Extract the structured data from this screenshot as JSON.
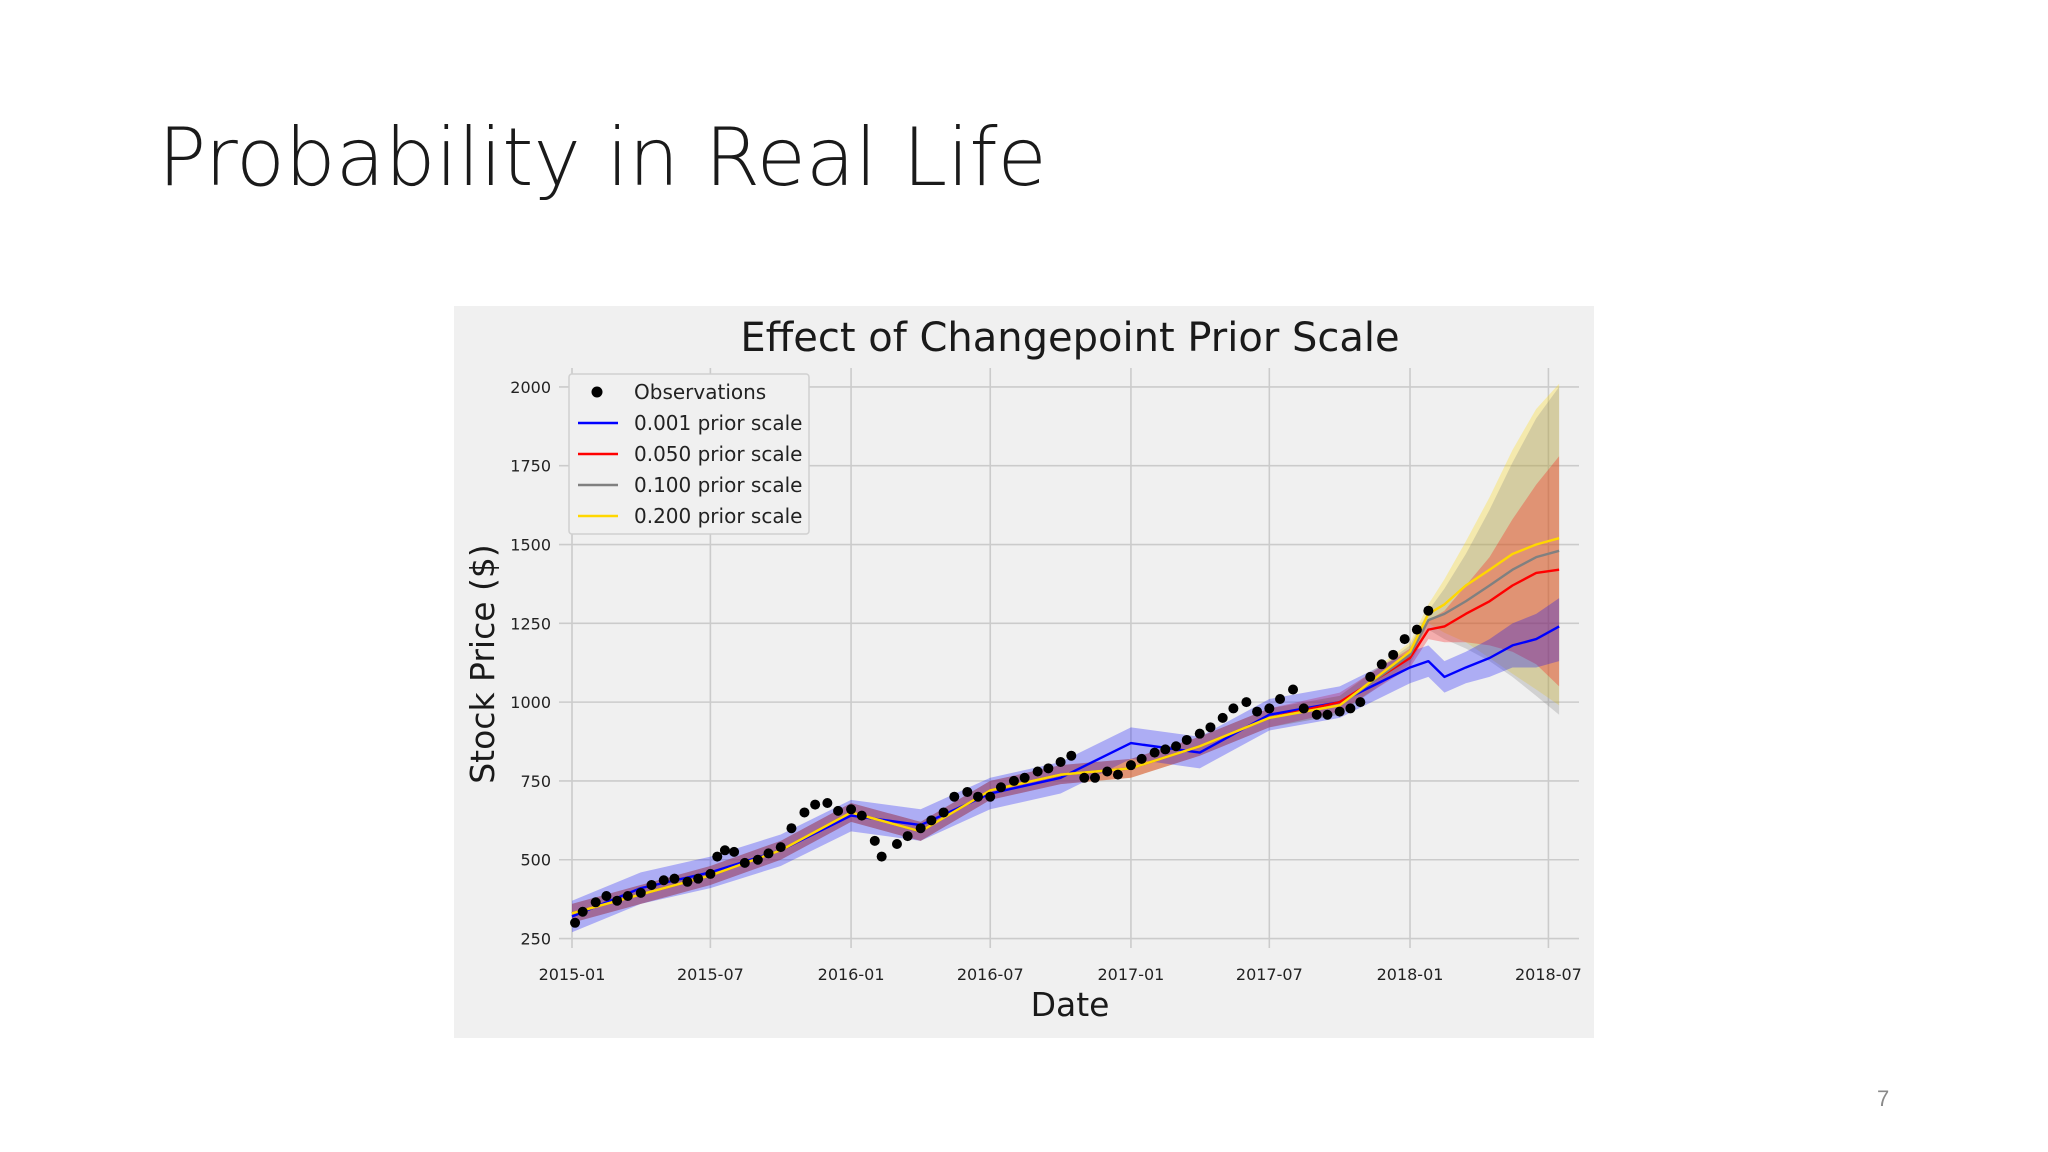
{
  "slide": {
    "title": "Probability in Real Life",
    "page_number": "7"
  },
  "colors": {
    "background": "#ffffff",
    "plot_background": "#f0f0f0",
    "grid": "#cbcbcb",
    "observations": "#000000",
    "scale_0_001": "#0000ff",
    "scale_0_050": "#ff0000",
    "scale_0_100": "#808080",
    "scale_0_200": "#ffd700"
  },
  "chart_data": {
    "type": "line",
    "title": "Effect of Changepoint Prior Scale",
    "xlabel": "Date",
    "ylabel": "Stock Price ($)",
    "x_axis": "date",
    "xlim": [
      "2014-12-15",
      "2018-08-10"
    ],
    "ylim": [
      220,
      2060
    ],
    "xticks": [
      "2015-01",
      "2015-07",
      "2016-01",
      "2016-07",
      "2017-01",
      "2017-07",
      "2018-01",
      "2018-07"
    ],
    "yticks": [
      250,
      500,
      750,
      1000,
      1250,
      1500,
      1750,
      2000
    ],
    "grid": true,
    "legend_position": "top-left",
    "legend": [
      "Observations",
      "0.001 prior scale",
      "0.050 prior scale",
      "0.100 prior scale",
      "0.200 prior scale"
    ],
    "observations": {
      "name": "Observations",
      "x": [
        "2015-01-05",
        "2015-01-15",
        "2015-02-01",
        "2015-02-15",
        "2015-03-01",
        "2015-03-15",
        "2015-04-01",
        "2015-04-15",
        "2015-05-01",
        "2015-05-15",
        "2015-06-01",
        "2015-06-15",
        "2015-07-01",
        "2015-07-10",
        "2015-07-20",
        "2015-08-01",
        "2015-08-15",
        "2015-09-01",
        "2015-09-15",
        "2015-10-01",
        "2015-10-15",
        "2015-11-01",
        "2015-11-15",
        "2015-12-01",
        "2015-12-15",
        "2016-01-01",
        "2016-01-15",
        "2016-02-01",
        "2016-02-10",
        "2016-03-01",
        "2016-03-15",
        "2016-04-01",
        "2016-04-15",
        "2016-05-01",
        "2016-05-15",
        "2016-06-01",
        "2016-06-15",
        "2016-07-01",
        "2016-07-15",
        "2016-08-01",
        "2016-08-15",
        "2016-09-01",
        "2016-09-15",
        "2016-10-01",
        "2016-10-15",
        "2016-11-01",
        "2016-11-15",
        "2016-12-01",
        "2016-12-15",
        "2017-01-01",
        "2017-01-15",
        "2017-02-01",
        "2017-02-15",
        "2017-03-01",
        "2017-03-15",
        "2017-04-01",
        "2017-04-15",
        "2017-05-01",
        "2017-05-15",
        "2017-06-01",
        "2017-06-15",
        "2017-07-01",
        "2017-07-15",
        "2017-08-01",
        "2017-08-15",
        "2017-09-01",
        "2017-09-15",
        "2017-10-01",
        "2017-10-15",
        "2017-10-28",
        "2017-11-10",
        "2017-11-25",
        "2017-12-10",
        "2017-12-25",
        "2018-01-10",
        "2018-01-25"
      ],
      "y": [
        300,
        335,
        365,
        385,
        370,
        385,
        395,
        420,
        435,
        440,
        430,
        440,
        455,
        510,
        530,
        525,
        490,
        500,
        520,
        540,
        600,
        650,
        675,
        680,
        655,
        660,
        640,
        560,
        510,
        550,
        575,
        600,
        625,
        650,
        700,
        715,
        700,
        700,
        730,
        750,
        760,
        780,
        790,
        810,
        830,
        760,
        760,
        780,
        770,
        800,
        820,
        840,
        850,
        860,
        880,
        900,
        920,
        950,
        980,
        1000,
        970,
        980,
        1010,
        1040,
        980,
        960,
        960,
        970,
        980,
        1000,
        1080,
        1120,
        1150,
        1200,
        1230,
        1290
      ]
    },
    "x": [
      "2015-01-01",
      "2015-04-01",
      "2015-07-01",
      "2015-10-01",
      "2016-01-01",
      "2016-04-01",
      "2016-07-01",
      "2016-10-01",
      "2017-01-01",
      "2017-04-01",
      "2017-07-01",
      "2017-10-01",
      "2018-01-01",
      "2018-01-25",
      "2018-02-15",
      "2018-03-15",
      "2018-04-15",
      "2018-05-15",
      "2018-06-15",
      "2018-07-15"
    ],
    "series": [
      {
        "name": "0.001 prior scale",
        "values": [
          320,
          410,
          460,
          530,
          640,
          610,
          710,
          760,
          870,
          840,
          960,
          1000,
          1110,
          1130,
          1080,
          1110,
          1140,
          1180,
          1200,
          1240
        ],
        "lower": [
          270,
          360,
          410,
          480,
          590,
          560,
          660,
          710,
          820,
          790,
          910,
          950,
          1060,
          1080,
          1030,
          1060,
          1080,
          1110,
          1110,
          1130
        ],
        "upper": [
          370,
          460,
          510,
          580,
          690,
          660,
          760,
          810,
          920,
          890,
          1010,
          1050,
          1160,
          1180,
          1130,
          1160,
          1200,
          1250,
          1280,
          1330
        ]
      },
      {
        "name": "0.050 prior scale",
        "values": [
          330,
          390,
          450,
          530,
          650,
          590,
          720,
          770,
          790,
          860,
          950,
          1000,
          1140,
          1230,
          1240,
          1280,
          1320,
          1370,
          1410,
          1420
        ],
        "lower": [
          300,
          360,
          420,
          500,
          620,
          560,
          690,
          740,
          760,
          830,
          920,
          970,
          1110,
          1200,
          1190,
          1190,
          1180,
          1160,
          1120,
          1050
        ],
        "upper": [
          360,
          420,
          480,
          560,
          680,
          620,
          750,
          800,
          820,
          890,
          980,
          1030,
          1170,
          1260,
          1290,
          1370,
          1460,
          1580,
          1690,
          1780
        ]
      },
      {
        "name": "0.100 prior scale",
        "values": [
          330,
          390,
          450,
          530,
          650,
          590,
          720,
          770,
          790,
          860,
          950,
          990,
          1150,
          1260,
          1280,
          1320,
          1370,
          1420,
          1460,
          1480
        ],
        "lower": [
          300,
          360,
          420,
          500,
          620,
          560,
          690,
          740,
          760,
          830,
          920,
          960,
          1120,
          1230,
          1200,
          1170,
          1130,
          1080,
          1020,
          960
        ],
        "upper": [
          360,
          420,
          480,
          560,
          680,
          620,
          750,
          800,
          820,
          890,
          980,
          1020,
          1180,
          1290,
          1360,
          1470,
          1610,
          1760,
          1900,
          2000
        ]
      },
      {
        "name": "0.200 prior scale",
        "values": [
          330,
          390,
          450,
          530,
          650,
          590,
          720,
          770,
          790,
          860,
          950,
          990,
          1160,
          1280,
          1310,
          1370,
          1420,
          1470,
          1500,
          1520
        ],
        "lower": [
          300,
          360,
          420,
          500,
          620,
          560,
          690,
          740,
          760,
          830,
          920,
          960,
          1130,
          1250,
          1220,
          1190,
          1140,
          1090,
          1040,
          990
        ],
        "upper": [
          360,
          420,
          480,
          560,
          680,
          620,
          750,
          800,
          820,
          890,
          980,
          1020,
          1190,
          1310,
          1390,
          1510,
          1650,
          1800,
          1930,
          2010
        ]
      }
    ]
  }
}
